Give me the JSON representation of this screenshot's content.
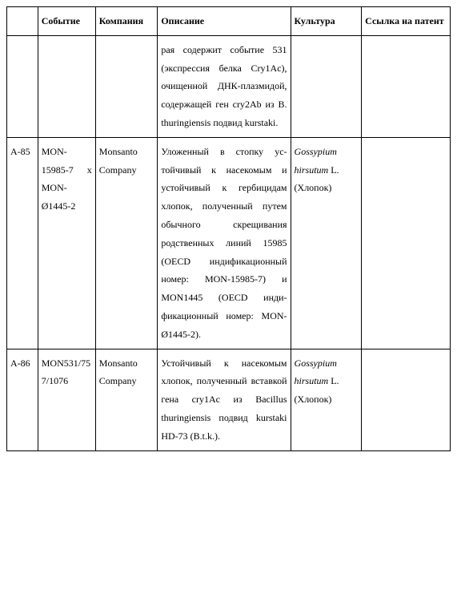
{
  "table": {
    "headers": {
      "id": "",
      "event": "Событие",
      "company": "Компания",
      "description": "Описание",
      "culture": "Культура",
      "patent": "Ссылка на па­тент"
    },
    "rows": [
      {
        "id": "",
        "event": "",
        "company": "",
        "description": "рая содержит событие 531 (экспрессия белка Cry1Ac), очищенной ДНК-плазмидой, содер­жащей ген cry2Ab из B. thuringiensis подвид kurstaki.",
        "culture_italic": "",
        "culture_plain": "",
        "patent": ""
      },
      {
        "id": "A-85",
        "event": "MON-15985-7 x MON-Ø1445-2",
        "company": "Monsanto Company",
        "description": "Уложенный в стопку ус­тойчивый к насекомым и устойчивый к гербици­дам хлопок, полученный путем обычного скрещи­вания родственных ли­ний 15985 (OECD инди­фикационный номер: MON-15985-7) и MON1445 (OECD инди­фикационный номер: MON-Ø1445-2).",
        "culture_italic": "Gossypium hirsutum",
        "culture_plain": "L. (Хлопок)",
        "patent": ""
      },
      {
        "id": "A-86",
        "event": "MON531/757/1076",
        "company": "Monsanto Company",
        "description": "Устойчивый к насеко­мым хлопок, полученный вставкой гена cry1Ac из Bacillus thuringiensis под­вид kurstaki HD-73 (B.t.k.).",
        "culture_italic": "Gossypium hirsutum",
        "culture_plain": "L. (Хлопок)",
        "patent": ""
      }
    ]
  },
  "style": {
    "font_family": "Times New Roman",
    "font_size_pt": 10,
    "line_height": 1.9,
    "border_color": "#000000",
    "bg_color": "#ffffff",
    "text_color": "#000000",
    "col_widths_pct": [
      7,
      13,
      14,
      30,
      16,
      20
    ]
  }
}
